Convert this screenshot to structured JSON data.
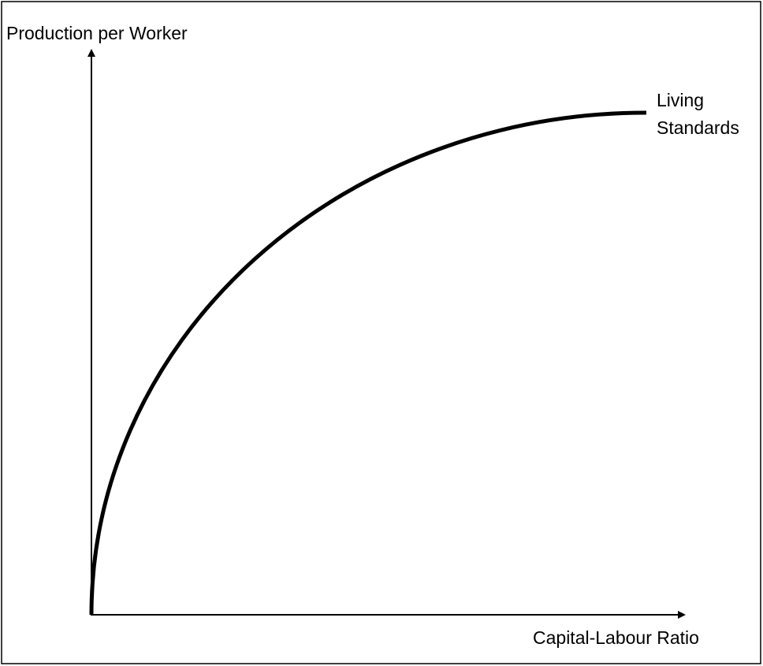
{
  "diagram": {
    "y_axis_label": "Production per Worker",
    "x_axis_label": "Capital-Labour Ratio",
    "curve_label": [
      "Living",
      "Standards"
    ]
  }
}
